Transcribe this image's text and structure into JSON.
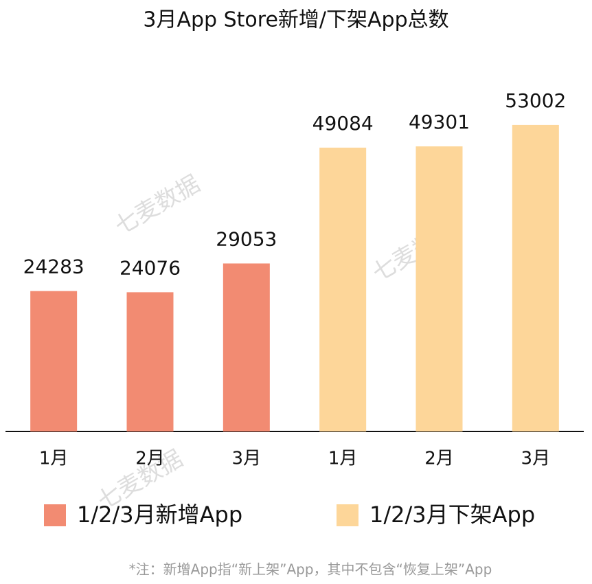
{
  "chart_data": {
    "type": "bar",
    "title": "3月App Store新增/下架App总数",
    "categories": [
      "1月",
      "2月",
      "3月",
      "1月",
      "2月",
      "3月"
    ],
    "series": [
      {
        "name": "1/2/3月新增App",
        "color": "#f28b72",
        "values": [
          24283,
          24076,
          29053,
          null,
          null,
          null
        ]
      },
      {
        "name": "1/2/3月下架App",
        "color": "#fdd699",
        "values": [
          null,
          null,
          null,
          49084,
          49301,
          53002
        ]
      }
    ],
    "ylim": [
      0,
      60000
    ],
    "watermark": "七麦数据",
    "footnote": "*注：新增App指“新上架”App，其中不包含“恢复上架”App"
  }
}
